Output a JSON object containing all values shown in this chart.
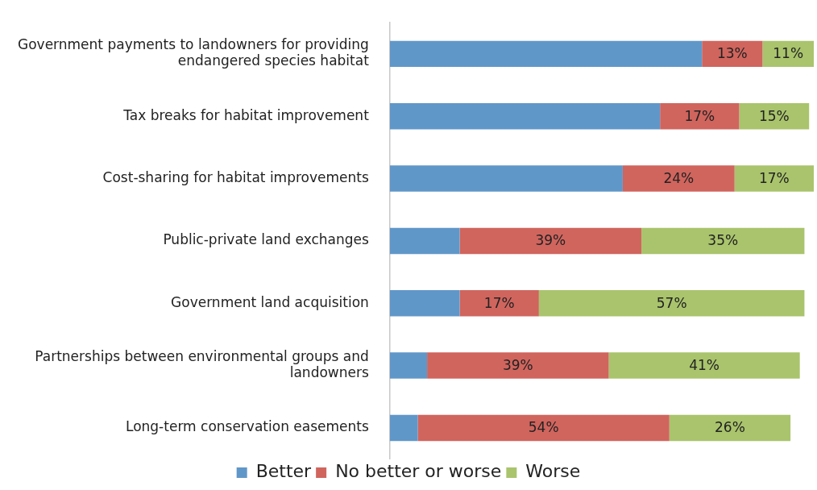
{
  "chart_data": {
    "type": "bar",
    "orientation": "horizontal",
    "stacked": true,
    "legend": "bottom",
    "grid": false,
    "categories": [
      "Government payments to landowners for providing endangered species habitat",
      "Tax breaks for habitat improvement",
      "Cost-sharing for habitat improvements",
      "Public-private land exchanges",
      "Government land acquisition",
      "Partnerships between environmental groups and landowners",
      "Long-term conservation easements"
    ],
    "series": [
      {
        "name": "Better",
        "color": "#6097c9",
        "values": [
          67,
          58,
          50,
          15,
          15,
          8,
          6
        ],
        "value_labels": [
          null,
          null,
          null,
          null,
          null,
          null,
          null
        ]
      },
      {
        "name": "No better or worse",
        "color": "#d0655e",
        "values": [
          13,
          17,
          24,
          39,
          17,
          39,
          54
        ],
        "value_labels": [
          "13%",
          "17%",
          "24%",
          "39%",
          "17%",
          "39%",
          "54%"
        ]
      },
      {
        "name": "Worse",
        "color": "#a9c46c",
        "values": [
          11,
          15,
          17,
          35,
          57,
          41,
          26
        ],
        "value_labels": [
          "11%",
          "15%",
          "17%",
          "35%",
          "57%",
          "41%",
          "26%"
        ]
      }
    ]
  }
}
